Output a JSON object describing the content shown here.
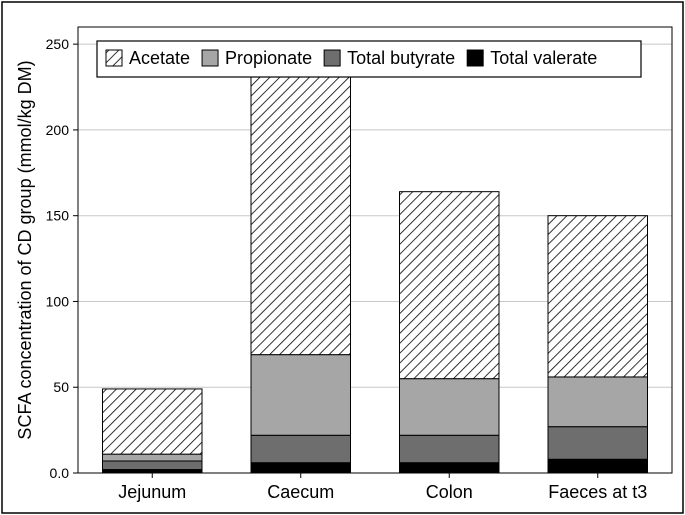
{
  "chart_data": {
    "type": "bar",
    "stacked": true,
    "categories": [
      "Jejunum",
      "Caecum",
      "Colon",
      "Faeces at t3"
    ],
    "series": [
      {
        "name": "Total valerate",
        "color": "#000000",
        "pattern": "solid",
        "values": [
          2,
          6,
          6,
          8
        ]
      },
      {
        "name": "Total butyrate",
        "color": "#6e6e6e",
        "pattern": "solid",
        "values": [
          5,
          16,
          16,
          19
        ]
      },
      {
        "name": "Propionate",
        "color": "#a6a6a6",
        "pattern": "solid",
        "values": [
          4,
          47,
          33,
          29
        ]
      },
      {
        "name": "Acetate",
        "color": "#ffffff",
        "pattern": "hatch",
        "values": [
          38,
          164,
          109,
          94
        ]
      }
    ],
    "legend_order": [
      "Acetate",
      "Propionate",
      "Total butyrate",
      "Total valerate"
    ],
    "title": "",
    "xlabel": "",
    "ylabel": "SCFA concentration of CD group (mmol/kg DM)",
    "ylim": [
      0,
      260
    ],
    "yticks": [
      0,
      50,
      100,
      150,
      200,
      250
    ],
    "ytick_labels": [
      "0.0",
      "50",
      "100",
      "150",
      "200",
      "250"
    ],
    "grid": "horizontal",
    "legend_position": "top"
  }
}
